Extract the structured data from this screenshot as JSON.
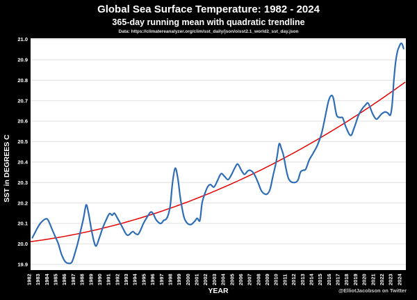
{
  "header": {
    "title": "Global Sea Surface Temperature: 1982 - 2024",
    "subtitle": "365-day running mean with quadratic trendline",
    "source": "Data: https://climatereanalyzer.org/clim/sst_daily/json/oisst2.1_world2_sst_day.json"
  },
  "watermark": "@ElliotJacobson on Twitter",
  "chart_data": {
    "type": "line",
    "title": "Global Sea Surface Temperature: 1982 - 2024",
    "subtitle": "365-day running mean with quadratic trendline",
    "source": "Data: https://climatereanalyzer.org/clim/sst_daily/json/oisst2.1_world2_sst_day.json",
    "xlabel": "YEAR",
    "ylabel": "SST in DEGREES C",
    "xlim": [
      1982.2,
      2024.76
    ],
    "ylim": [
      19.872,
      21.005
    ],
    "x_ticks": [
      1982,
      1983,
      1984,
      1985,
      1986,
      1987,
      1988,
      1989,
      1990,
      1991,
      1992,
      1993,
      1994,
      1995,
      1996,
      1997,
      1998,
      1999,
      2000,
      2001,
      2002,
      2003,
      2004,
      2005,
      2006,
      2007,
      2008,
      2009,
      2010,
      2011,
      2012,
      2013,
      2014,
      2015,
      2016,
      2017,
      2018,
      2019,
      2020,
      2021,
      2022,
      2023,
      2024
    ],
    "y_ticks": [
      19.9,
      20.0,
      20.1,
      20.2,
      20.3,
      20.4,
      20.5,
      20.6,
      20.7,
      20.8,
      20.9,
      21.0
    ],
    "grid": "horizontal-only",
    "legend": "none",
    "colors": {
      "background": "#000000",
      "plot_bg": "#ffffff",
      "grid": "#e7e7e7",
      "series": "#2e6db6",
      "trendline": "#e60000",
      "text": "#ffffff",
      "watermark": "#c8c8c8"
    },
    "series": [
      {
        "name": "365-day running mean",
        "type": "line",
        "points": [
          [
            1982.4,
            20.03
          ],
          [
            1982.7,
            20.055
          ],
          [
            1983.0,
            20.08
          ],
          [
            1983.4,
            20.105
          ],
          [
            1983.9,
            20.122
          ],
          [
            1984.2,
            20.115
          ],
          [
            1984.7,
            20.065
          ],
          [
            1985.0,
            20.035
          ],
          [
            1985.35,
            20.0
          ],
          [
            1985.7,
            19.95
          ],
          [
            1986.1,
            19.915
          ],
          [
            1986.5,
            19.905
          ],
          [
            1986.9,
            19.912
          ],
          [
            1987.3,
            19.965
          ],
          [
            1987.6,
            20.012
          ],
          [
            1987.85,
            20.06
          ],
          [
            1988.2,
            20.125
          ],
          [
            1988.5,
            20.19
          ],
          [
            1988.75,
            20.155
          ],
          [
            1989.1,
            20.07
          ],
          [
            1989.4,
            20.01
          ],
          [
            1989.65,
            19.99
          ],
          [
            1990.0,
            20.03
          ],
          [
            1990.4,
            20.08
          ],
          [
            1990.8,
            20.12
          ],
          [
            1991.15,
            20.148
          ],
          [
            1991.45,
            20.14
          ],
          [
            1991.7,
            20.15
          ],
          [
            1992.0,
            20.13
          ],
          [
            1992.5,
            20.09
          ],
          [
            1993.0,
            20.05
          ],
          [
            1993.25,
            20.042
          ],
          [
            1993.5,
            20.05
          ],
          [
            1993.8,
            20.06
          ],
          [
            1994.1,
            20.05
          ],
          [
            1994.4,
            20.047
          ],
          [
            1994.7,
            20.07
          ],
          [
            1995.0,
            20.1
          ],
          [
            1995.4,
            20.13
          ],
          [
            1995.8,
            20.155
          ],
          [
            1996.1,
            20.148
          ],
          [
            1996.4,
            20.12
          ],
          [
            1996.7,
            20.105
          ],
          [
            1997.0,
            20.1
          ],
          [
            1997.3,
            20.115
          ],
          [
            1997.55,
            20.12
          ],
          [
            1997.8,
            20.14
          ],
          [
            1998.05,
            20.19
          ],
          [
            1998.3,
            20.3
          ],
          [
            1998.6,
            20.37
          ],
          [
            1998.9,
            20.32
          ],
          [
            1999.2,
            20.22
          ],
          [
            1999.6,
            20.13
          ],
          [
            2000.0,
            20.1
          ],
          [
            2000.4,
            20.095
          ],
          [
            2000.8,
            20.11
          ],
          [
            2001.1,
            20.125
          ],
          [
            2001.4,
            20.115
          ],
          [
            2001.65,
            20.2
          ],
          [
            2002.0,
            20.25
          ],
          [
            2002.3,
            20.28
          ],
          [
            2002.6,
            20.29
          ],
          [
            2003.0,
            20.278
          ],
          [
            2003.4,
            20.31
          ],
          [
            2003.8,
            20.343
          ],
          [
            2004.2,
            20.33
          ],
          [
            2004.6,
            20.314
          ],
          [
            2005.0,
            20.34
          ],
          [
            2005.4,
            20.375
          ],
          [
            2005.7,
            20.39
          ],
          [
            2006.1,
            20.36
          ],
          [
            2006.45,
            20.34
          ],
          [
            2006.8,
            20.355
          ],
          [
            2007.1,
            20.36
          ],
          [
            2007.5,
            20.345
          ],
          [
            2008.0,
            20.3
          ],
          [
            2008.3,
            20.266
          ],
          [
            2008.6,
            20.248
          ],
          [
            2009.0,
            20.243
          ],
          [
            2009.35,
            20.266
          ],
          [
            2009.7,
            20.334
          ],
          [
            2010.0,
            20.39
          ],
          [
            2010.2,
            20.44
          ],
          [
            2010.4,
            20.49
          ],
          [
            2010.65,
            20.465
          ],
          [
            2010.9,
            20.43
          ],
          [
            2011.2,
            20.36
          ],
          [
            2011.5,
            20.315
          ],
          [
            2012.0,
            20.3
          ],
          [
            2012.5,
            20.31
          ],
          [
            2012.8,
            20.35
          ],
          [
            2013.1,
            20.36
          ],
          [
            2013.4,
            20.365
          ],
          [
            2013.8,
            20.41
          ],
          [
            2014.2,
            20.44
          ],
          [
            2014.7,
            20.48
          ],
          [
            2015.2,
            20.54
          ],
          [
            2015.7,
            20.64
          ],
          [
            2016.0,
            20.7
          ],
          [
            2016.3,
            20.725
          ],
          [
            2016.55,
            20.71
          ],
          [
            2016.9,
            20.63
          ],
          [
            2017.3,
            20.618
          ],
          [
            2017.6,
            20.615
          ],
          [
            2018.0,
            20.567
          ],
          [
            2018.5,
            20.53
          ],
          [
            2018.9,
            20.567
          ],
          [
            2019.4,
            20.63
          ],
          [
            2019.8,
            20.66
          ],
          [
            2020.2,
            20.68
          ],
          [
            2020.5,
            20.687
          ],
          [
            2021.0,
            20.635
          ],
          [
            2021.4,
            20.61
          ],
          [
            2021.7,
            20.62
          ],
          [
            2022.0,
            20.635
          ],
          [
            2022.4,
            20.645
          ],
          [
            2022.7,
            20.64
          ],
          [
            2023.0,
            20.63
          ],
          [
            2023.2,
            20.68
          ],
          [
            2023.4,
            20.8
          ],
          [
            2023.6,
            20.89
          ],
          [
            2023.8,
            20.94
          ],
          [
            2024.0,
            20.965
          ],
          [
            2024.2,
            20.98
          ],
          [
            2024.35,
            20.975
          ],
          [
            2024.5,
            20.955
          ]
        ]
      },
      {
        "name": "quadratic trendline",
        "type": "quadratic",
        "formula_note": "T(year) = a + b*(year-1982) + c*(year-1982)^2",
        "a": 20.01,
        "b": 0.0054,
        "c": 0.000302
      }
    ]
  }
}
